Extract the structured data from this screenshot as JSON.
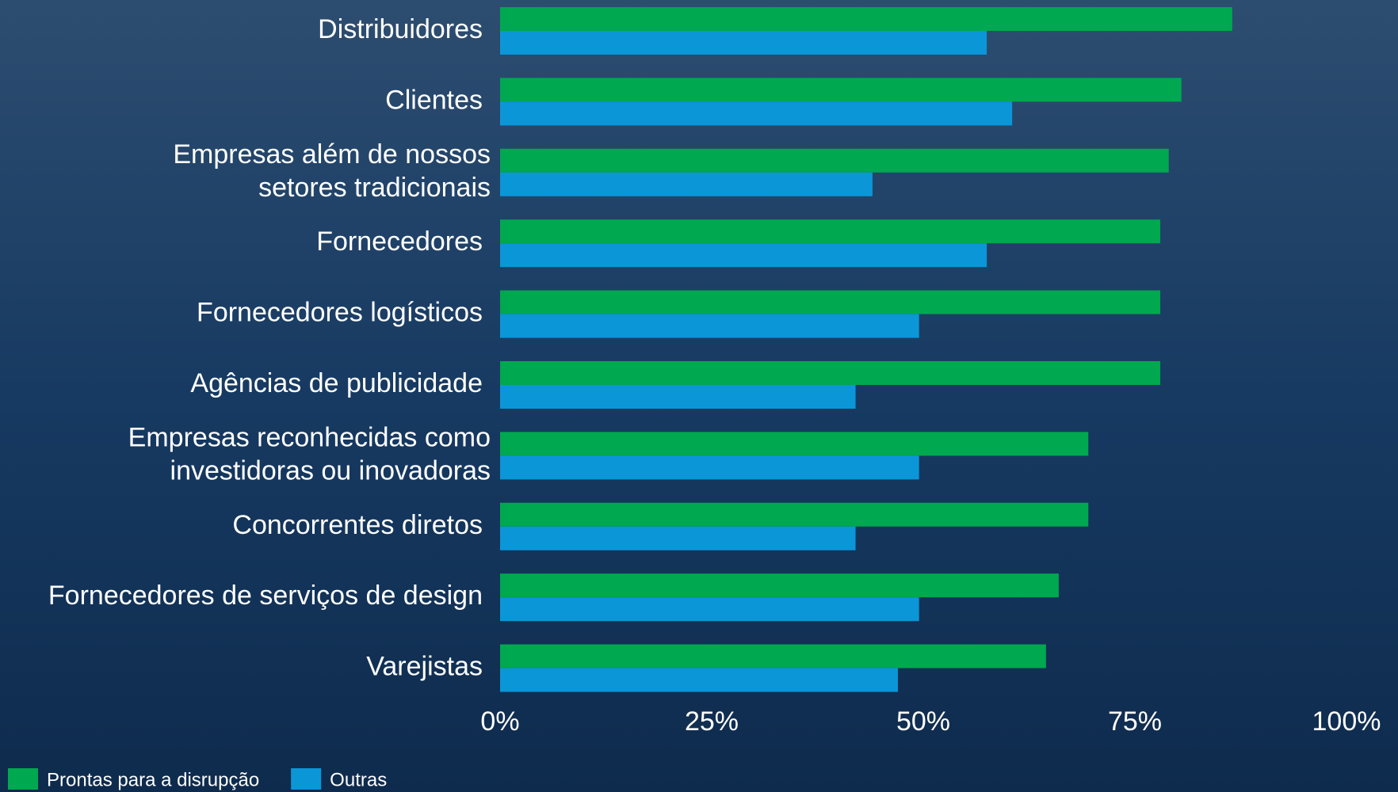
{
  "chart_data": {
    "type": "hbar",
    "categories": [
      "Distribuidores",
      "Clientes",
      "Empresas além de nossos\nsetores tradicionais",
      "Fornecedores",
      "Fornecedores logísticos",
      "Agências de publicidade",
      "Empresas reconhecidas como\ninvestidoras ou inovadoras",
      "Concorrentes diretos",
      "Fornecedores de serviços de design",
      "Varejistas"
    ],
    "series": [
      {
        "name": "Prontas para a disrupção",
        "color": "#00a84f",
        "values": [
          86.5,
          80.5,
          79,
          78,
          78,
          78,
          69.5,
          69.5,
          66,
          64.5
        ]
      },
      {
        "name": "Outras",
        "color": "#0b96d8",
        "values": [
          57.5,
          60.5,
          44,
          57.5,
          49.5,
          42,
          49.5,
          42,
          49.5,
          47
        ]
      }
    ],
    "xlim": [
      0,
      100
    ],
    "xticks": [
      {
        "value": 0,
        "label": "0%"
      },
      {
        "value": 25,
        "label": "25%"
      },
      {
        "value": 50,
        "label": "50%"
      },
      {
        "value": 75,
        "label": "75%"
      },
      {
        "value": 100,
        "label": "100%"
      }
    ],
    "legend": "bottom-left"
  }
}
